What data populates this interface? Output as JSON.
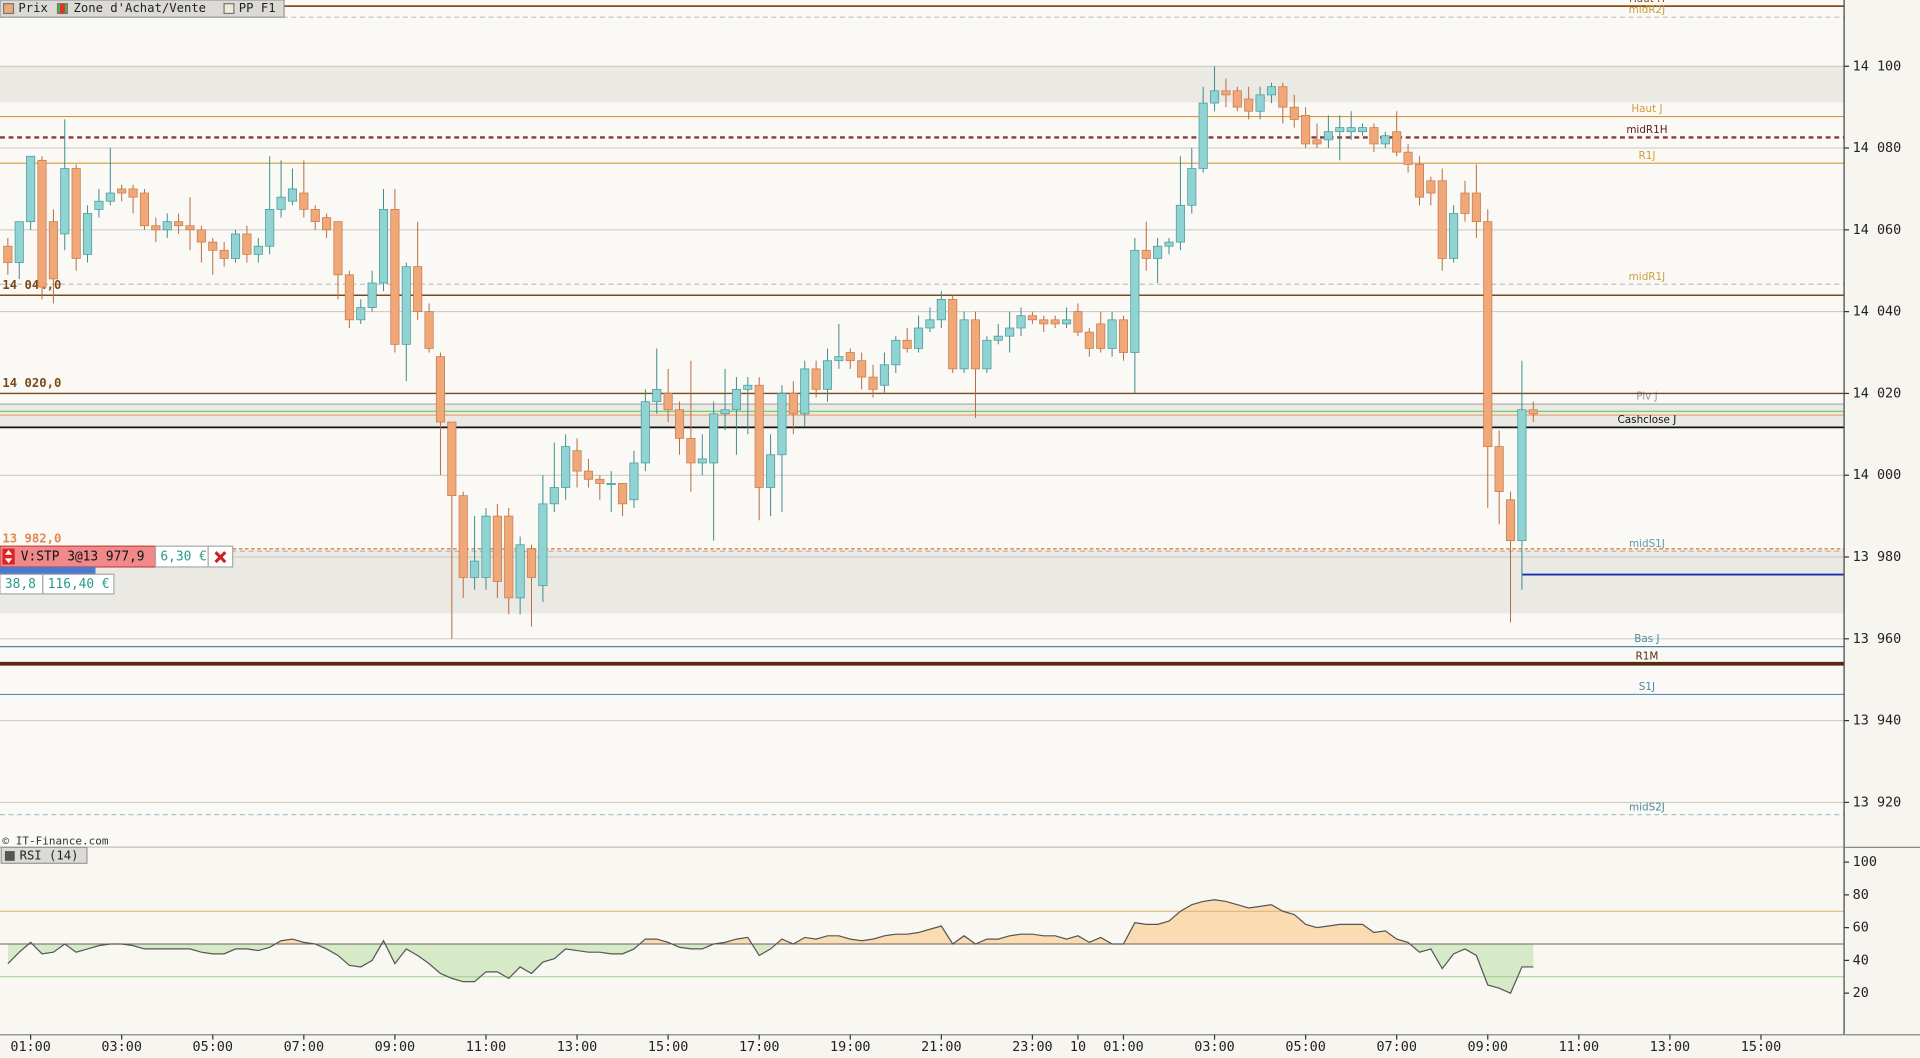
{
  "chart_data": [
    {
      "type": "candlestick",
      "legend": [
        "Prix",
        "Zone d'Achat/Vente",
        "PP F1"
      ],
      "source": "© IT-Finance.com",
      "up_color": "#8fd3d3",
      "down_color": "#f0a878",
      "open": [
        14056,
        14052,
        14062,
        14077,
        14062,
        14059,
        14075,
        14054,
        14065,
        14067,
        14070,
        14070,
        14069,
        14061,
        14060,
        14062,
        14061,
        14060,
        14057,
        14055,
        14053,
        14059,
        14054,
        14056,
        14065,
        14067,
        14069,
        14065,
        14063,
        14062,
        14049,
        14038,
        14041,
        14047,
        14065,
        14032,
        14051,
        14040,
        14029,
        14013,
        13995,
        13975,
        13975,
        13990,
        13990,
        13970,
        13982,
        13973,
        13993,
        13997,
        14006,
        14001,
        13999,
        13998,
        13998,
        13994,
        14003,
        14018,
        14020,
        14016,
        14009,
        14003,
        14003,
        14015,
        14016,
        14021,
        14022,
        13997,
        14005,
        14020,
        14015,
        14026,
        14021,
        14028,
        14030,
        14028,
        14024,
        14022,
        14027,
        14033,
        14031,
        14036,
        14038,
        14043,
        14026,
        14038,
        14026,
        14033,
        14034,
        14036,
        14039,
        14038,
        14038,
        14037,
        14040,
        14035,
        14037,
        14031,
        14038,
        14030,
        14055,
        14053,
        14056,
        14057,
        14066,
        14075,
        14091,
        14094,
        14094,
        14092,
        14089,
        14093,
        14095,
        14090,
        14088,
        14082,
        14082,
        14084,
        14084,
        14084,
        14085,
        14081,
        14084,
        14079,
        14076,
        14072,
        14072,
        14053,
        14069,
        14069,
        14062,
        14007,
        13994,
        13984,
        14016
      ],
      "high": [
        14058,
        14062,
        14078,
        14078,
        14065,
        14087,
        14076,
        14066,
        14070,
        14080,
        14071,
        14071,
        14070,
        14063,
        14064,
        14064,
        14068,
        14061,
        14058,
        14057,
        14060,
        14061,
        14058,
        14078,
        14077,
        14075,
        14077,
        14066,
        14064,
        14062,
        14050,
        14043,
        14050,
        14070,
        14070,
        14052,
        14062,
        14042,
        14030,
        14013,
        13996,
        13990,
        13992,
        13993,
        13992,
        13985,
        13983,
        14000,
        14008,
        14010,
        14009,
        14004,
        14000,
        14001,
        13998,
        14006,
        14021,
        14031,
        14026,
        14018,
        14028,
        14010,
        14018,
        14026,
        14024,
        14024,
        14024,
        14010,
        14022,
        14023,
        14028,
        14028,
        14031,
        14037,
        14031,
        14030,
        14027,
        14030,
        14034,
        14036,
        14039,
        14041,
        14045,
        14044,
        14040,
        14040,
        14034,
        14037,
        14040,
        14041,
        14040,
        14039,
        14039,
        14041,
        14042,
        14036,
        14040,
        14040,
        14039,
        14058,
        14062,
        14058,
        14058,
        14078,
        14080,
        14095,
        14100,
        14097,
        14095,
        14095,
        14095,
        14096,
        14096,
        14093,
        14090,
        14086,
        14088,
        14088,
        14089,
        14086,
        14086,
        14084,
        14089,
        14081,
        14078,
        14073,
        14075,
        14066,
        14072,
        14076,
        14065,
        14011,
        13996,
        14028,
        14018
      ],
      "low": [
        14049,
        14048,
        14060,
        14043,
        14042,
        14055,
        14050,
        14052,
        14063,
        14066,
        14067,
        14064,
        14060,
        14057,
        14058,
        14059,
        14055,
        14052,
        14049,
        14051,
        14052,
        14052,
        14052,
        14054,
        14063,
        14066,
        14063,
        14060,
        14058,
        14043,
        14036,
        14037,
        14040,
        14045,
        14030,
        14023,
        14038,
        14030,
        14000,
        13960,
        13970,
        13972,
        13972,
        13970,
        13966,
        13966,
        13963,
        13969,
        13991,
        13994,
        13997,
        13997,
        13994,
        13991,
        13990,
        13992,
        14001,
        14015,
        14013,
        14005,
        13996,
        14000,
        13984,
        14011,
        14005,
        14010,
        13989,
        13990,
        13991,
        14010,
        14012,
        14019,
        14018,
        14026,
        14026,
        14021,
        14019,
        14020,
        14025,
        14030,
        14030,
        14035,
        14036,
        14025,
        14025,
        14014,
        14025,
        14032,
        14030,
        14034,
        14037,
        14035,
        14036,
        14036,
        14034,
        14029,
        14030,
        14029,
        14028,
        14020,
        14050,
        14047,
        14054,
        14055,
        14064,
        14074,
        14089,
        14090,
        14089,
        14087,
        14087,
        14091,
        14086,
        14085,
        14080,
        14080,
        14080,
        14077,
        14082,
        14083,
        14079,
        14080,
        14078,
        14074,
        14066,
        14066,
        14050,
        14052,
        14062,
        14058,
        13992,
        13988,
        13964,
        13972,
        14013
      ],
      "close": [
        14052,
        14062,
        14078,
        14046,
        14048,
        14075,
        14053,
        14064,
        14067,
        14069,
        14069,
        14068,
        14061,
        14060,
        14062,
        14061,
        14060,
        14057,
        14055,
        14053,
        14059,
        14054,
        14056,
        14065,
        14068,
        14070,
        14065,
        14062,
        14060,
        14049,
        14038,
        14041,
        14047,
        14065,
        14032,
        14051,
        14040,
        14031,
        14013,
        13995,
        13975,
        13979,
        13990,
        13974,
        13970,
        13983,
        13975,
        13993,
        13997,
        14007,
        14001,
        13999,
        13998,
        13998,
        13993,
        14003,
        14018,
        14021,
        14016,
        14009,
        14003,
        14004,
        14015,
        14016,
        14021,
        14022,
        13997,
        14005,
        14020,
        14015,
        14026,
        14021,
        14028,
        14029,
        14028,
        14024,
        14021,
        14027,
        14033,
        14031,
        14036,
        14038,
        14043,
        14026,
        14038,
        14026,
        14033,
        14034,
        14036,
        14039,
        14038,
        14037,
        14037,
        14038,
        14035,
        14031,
        14031,
        14038,
        14030,
        14055,
        14053,
        14056,
        14057,
        14066,
        14075,
        14091,
        14094,
        14093,
        14090,
        14089,
        14093,
        14095,
        14090,
        14087,
        14081,
        14081,
        14084,
        14085,
        14085,
        14085,
        14081,
        14083,
        14079,
        14076,
        14068,
        14069,
        14053,
        14064,
        14064,
        14062,
        14007,
        13996,
        13984,
        14016,
        14015
      ],
      "xlim": [
        -0.69,
        161.3
      ],
      "xticks": [
        {
          "value": 2,
          "label": "01:00"
        },
        {
          "value": 10,
          "label": "03:00"
        },
        {
          "value": 18,
          "label": "05:00"
        },
        {
          "value": 26,
          "label": "07:00"
        },
        {
          "value": 34,
          "label": "09:00"
        },
        {
          "value": 42,
          "label": "11:00"
        },
        {
          "value": 50,
          "label": "13:00"
        },
        {
          "value": 58,
          "label": "15:00"
        },
        {
          "value": 66,
          "label": "17:00"
        },
        {
          "value": 74,
          "label": "19:00"
        },
        {
          "value": 82,
          "label": "21:00"
        },
        {
          "value": 90,
          "label": "23:00"
        },
        {
          "value": 94,
          "label": "10"
        },
        {
          "value": 98,
          "label": "01:00"
        },
        {
          "value": 106,
          "label": "03:00"
        },
        {
          "value": 114,
          "label": "05:00"
        },
        {
          "value": 122,
          "label": "07:00"
        },
        {
          "value": 130,
          "label": "09:00"
        },
        {
          "value": 138,
          "label": "11:00"
        },
        {
          "value": 146,
          "label": "13:00"
        },
        {
          "value": 154,
          "label": "15:00"
        }
      ],
      "ylim": [
        13909,
        14116.2
      ],
      "yticks": [
        {
          "value": 13920,
          "label": "13 920"
        },
        {
          "value": 13940,
          "label": "13 940"
        },
        {
          "value": 13960,
          "label": "13 960"
        },
        {
          "value": 13980,
          "label": "13 980"
        },
        {
          "value": 14000,
          "label": "14 000"
        },
        {
          "value": 14020,
          "label": "14 020"
        },
        {
          "value": 14040,
          "label": "14 040"
        },
        {
          "value": 14060,
          "label": "14 060"
        },
        {
          "value": 14080,
          "label": "14 080"
        },
        {
          "value": 14100,
          "label": "14 100"
        }
      ],
      "grid": true,
      "zones": [
        [
          14091.2,
          14100
        ],
        [
          14011.7,
          14017.4
        ],
        [
          13966.2,
          13981.7
        ]
      ],
      "zone_color": "#ebe9e4",
      "levels": [
        {
          "name": "Haut H",
          "value": 14114.7,
          "color": "#8b4a1a",
          "width": 1.5
        },
        {
          "name": "midR2J",
          "value": 14112,
          "color": "#c0c0c0",
          "label_color": "#c8a040",
          "dashed": true
        },
        {
          "name": "Haut J",
          "value": 14087.7,
          "color": "#d49a3a"
        },
        {
          "name": "midR1H",
          "value": 14082.6,
          "color": "#8b3a3a",
          "label_color": "#5a2020",
          "dashed": true,
          "width": 2
        },
        {
          "name": "R1J",
          "value": 14076.3,
          "color": "#d49a3a"
        },
        {
          "name": "midR1J",
          "value": 14046.7,
          "color": "#c0c0c0",
          "label_color": "#c8a040",
          "dashed": true
        },
        {
          "name": "Piv J",
          "value": 14017.4,
          "color": "#a8a8a8",
          "label_color": "#999999"
        },
        {
          "value": 14015.6,
          "color": "#6fcf6f"
        },
        {
          "value": 14014.7,
          "color": "#e8a878"
        },
        {
          "name": "Cashclose J",
          "value": 14011.7,
          "color": "#111111",
          "width": 1.5
        },
        {
          "name": "midS1J",
          "value": 13981.4,
          "color": "#b8b8b8",
          "label_color": "#5a9aa8",
          "dashed": true
        },
        {
          "value": 13975.7,
          "color": "#1a2fb0",
          "width": 1.5,
          "start": 133
        },
        {
          "name": "Bas J",
          "value": 13958.1,
          "color": "#4a8aa0",
          "label_color": "#4a8aa0"
        },
        {
          "name": "R1M",
          "value": 13953.9,
          "color": "#5a2a10",
          "label_color": "#5a2a10",
          "width": 3
        },
        {
          "name": "S1J",
          "value": 13946.4,
          "color": "#5a8fb8",
          "label_color": "#4a8aa0"
        },
        {
          "name": "midS2J",
          "value": 13917,
          "color": "#a8c4d0",
          "label_color": "#4a8aa0",
          "dashed": true
        }
      ],
      "orders": [
        {
          "value": 14044,
          "label": "14 044,0",
          "color": "#7a4a1a"
        },
        {
          "value": 14020,
          "label": "14 020,0",
          "color": "#7a4a1a"
        },
        {
          "value": 13982,
          "label": "13 982,0",
          "color": "#e08850",
          "dashed": true
        }
      ],
      "order": {
        "label": "V:STP 3@13 977,9",
        "pnl": "6,30 €",
        "qty": "38,8",
        "amount": "116,40 €"
      }
    },
    {
      "type": "line",
      "title": "RSI (14)",
      "color": "#555555",
      "fill_above": "#fbdcb2",
      "fill_below": "#d6eac8",
      "values": [
        38,
        45,
        51,
        44,
        45,
        50,
        45,
        47,
        49,
        50,
        50,
        49,
        47,
        47,
        47,
        47,
        47,
        45,
        44,
        44,
        47,
        47,
        46,
        48,
        52,
        53,
        51,
        50,
        47,
        43,
        37,
        36,
        40,
        52,
        38,
        47,
        43,
        38,
        32,
        29,
        27,
        27,
        33,
        33,
        29,
        36,
        32,
        39,
        41,
        47,
        46,
        45,
        45,
        44,
        44,
        47,
        53,
        53,
        51,
        48,
        47,
        47,
        50,
        51,
        53,
        54,
        43,
        47,
        53,
        50,
        54,
        53,
        55,
        55,
        53,
        52,
        53,
        55,
        56,
        56,
        57,
        59,
        61,
        50,
        55,
        50,
        53,
        53,
        55,
        56,
        56,
        55,
        55,
        53,
        55,
        51,
        54,
        50,
        50,
        63,
        62,
        62,
        64,
        70,
        74,
        76,
        77,
        76,
        74,
        72,
        73,
        74,
        70,
        68,
        62,
        60,
        61,
        62,
        62,
        62,
        57,
        58,
        53,
        51,
        45,
        47,
        35,
        44,
        47,
        43,
        25,
        23,
        20,
        36,
        36
      ],
      "ylim": [
        -5.4,
        109
      ],
      "yticks": [
        20,
        40,
        60,
        80,
        100
      ],
      "levels": [
        {
          "value": 70,
          "color": "#e0b070"
        },
        {
          "value": 50,
          "color": "#666666"
        },
        {
          "value": 30,
          "color": "#9ccf8a"
        }
      ]
    }
  ]
}
